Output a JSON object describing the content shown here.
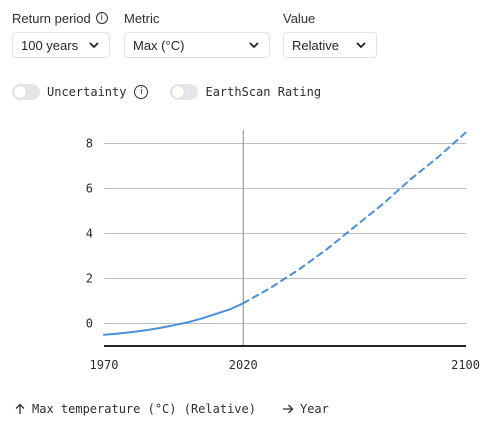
{
  "controls": {
    "return_period": {
      "label": "Return period",
      "value": "100 years"
    },
    "metric": {
      "label": "Metric",
      "value": "Max (°C)"
    },
    "value": {
      "label": "Value",
      "value": "Relative"
    }
  },
  "toggles": {
    "uncertainty": {
      "label": "Uncertainty",
      "on": false
    },
    "earthscan": {
      "label": "EarthScan Rating",
      "on": false
    }
  },
  "footer": {
    "y_axis_label": "Max temperature (°C) (Relative)",
    "x_axis_label": "Year"
  },
  "icons": {
    "info": "info-icon",
    "chevron": "chevron-down-icon",
    "arrow_up": "arrow-up-icon",
    "arrow_right": "arrow-right-icon"
  },
  "colors": {
    "line": "#4a90d9",
    "grid": "#b9c2cc",
    "axis": "#222222",
    "divider": "#888888"
  },
  "chart_data": {
    "type": "line",
    "x_ticks": [
      1970,
      2020,
      2100
    ],
    "y_ticks": [
      0,
      2,
      4,
      6,
      8
    ],
    "xlim": [
      1970,
      2100
    ],
    "ylim": [
      -1,
      8.6
    ],
    "divider_year": 2020,
    "series": [
      {
        "style": "solid",
        "x": [
          1970,
          1975,
          1980,
          1985,
          1990,
          1995,
          2000,
          2005,
          2010,
          2015,
          2020
        ],
        "y": [
          -0.5,
          -0.45,
          -0.38,
          -0.3,
          -0.2,
          -0.08,
          0.05,
          0.22,
          0.42,
          0.62,
          0.9
        ]
      },
      {
        "style": "dashed",
        "x": [
          2020,
          2030,
          2040,
          2050,
          2060,
          2070,
          2080,
          2090,
          2100
        ],
        "y": [
          0.9,
          1.6,
          2.4,
          3.3,
          4.3,
          5.3,
          6.4,
          7.4,
          8.5
        ]
      }
    ]
  }
}
